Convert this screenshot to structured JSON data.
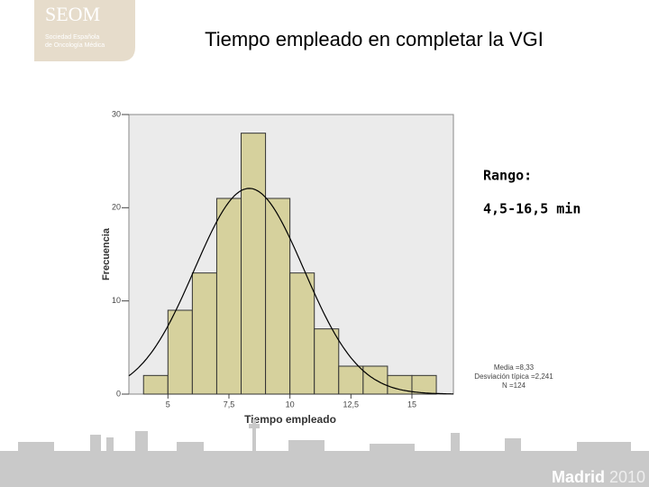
{
  "header": {
    "logo": "SEOM",
    "logo_subtitle": [
      "Sociedad Española",
      "de Oncología Médica"
    ]
  },
  "footer": {
    "city": "Madrid",
    "year": "2010"
  },
  "chart_data": {
    "type": "histogram",
    "title": "Tiempo empleado en completar la VGI",
    "x_label": "Tiempo empleado",
    "y_label": "Frecuencia",
    "bins": [
      4,
      5,
      6,
      7,
      8,
      9,
      10,
      11,
      12,
      13,
      14,
      15,
      16
    ],
    "values": [
      2,
      9,
      13,
      21,
      28,
      21,
      13,
      7,
      3,
      3,
      2,
      2
    ],
    "color": "#d6d19d",
    "xlim": [
      3.4,
      16.7
    ],
    "ylim": [
      0,
      30
    ],
    "xticks": [
      5,
      {
        "value": 7.5,
        "label": "7,5"
      },
      10,
      {
        "value": 12.5,
        "label": "12,5"
      },
      15
    ],
    "yticks": [
      0,
      10,
      20,
      30
    ],
    "stats": {
      "mean": {
        "value": 8.33,
        "label": "Media =8,33"
      },
      "sd": {
        "value": 2.241,
        "label": "Desviación típica =2,241"
      },
      "n": {
        "value": 124,
        "label": "N =124"
      }
    },
    "annotations": [
      "Rango:",
      "4,5-16,5 min"
    ]
  }
}
